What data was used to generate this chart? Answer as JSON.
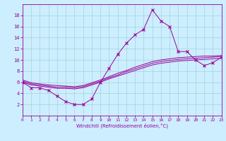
{
  "xlabel": "Windchill (Refroidissement éolien,°C)",
  "background_color": "#cceeff",
  "line_color": "#990099",
  "x_hours": [
    0,
    1,
    2,
    3,
    4,
    5,
    6,
    7,
    8,
    9,
    10,
    11,
    12,
    13,
    14,
    15,
    16,
    17,
    18,
    19,
    20,
    21,
    22,
    23
  ],
  "main_line": [
    6,
    5,
    5,
    4.5,
    3.5,
    2.5,
    2,
    2,
    3,
    6,
    8.5,
    11,
    13,
    14.5,
    15.5,
    19,
    17,
    16,
    11.5,
    11.5,
    10,
    9,
    9.5,
    10.5
  ],
  "line2": [
    6,
    5.5,
    5.3,
    5.1,
    4.9,
    4.9,
    4.8,
    5.0,
    5.5,
    6.0,
    6.6,
    7.1,
    7.6,
    8.1,
    8.6,
    9.1,
    9.4,
    9.6,
    9.8,
    9.9,
    10.0,
    10.1,
    10.2,
    10.3
  ],
  "line3": [
    6.2,
    5.7,
    5.5,
    5.3,
    5.1,
    5.1,
    5.0,
    5.2,
    5.7,
    6.2,
    6.8,
    7.3,
    7.9,
    8.4,
    8.9,
    9.4,
    9.7,
    9.9,
    10.1,
    10.2,
    10.3,
    10.4,
    10.5,
    10.6
  ],
  "line4": [
    6.4,
    5.9,
    5.7,
    5.5,
    5.4,
    5.3,
    5.2,
    5.4,
    5.9,
    6.4,
    7.0,
    7.6,
    8.1,
    8.7,
    9.2,
    9.7,
    10.0,
    10.2,
    10.4,
    10.5,
    10.6,
    10.7,
    10.7,
    10.8
  ],
  "ylim": [
    0,
    20
  ],
  "xlim": [
    0,
    23
  ],
  "yticks": [
    2,
    4,
    6,
    8,
    10,
    12,
    14,
    16,
    18
  ],
  "xticks": [
    0,
    1,
    2,
    3,
    4,
    5,
    6,
    7,
    8,
    9,
    10,
    11,
    12,
    13,
    14,
    15,
    16,
    17,
    18,
    19,
    20,
    21,
    22,
    23
  ]
}
